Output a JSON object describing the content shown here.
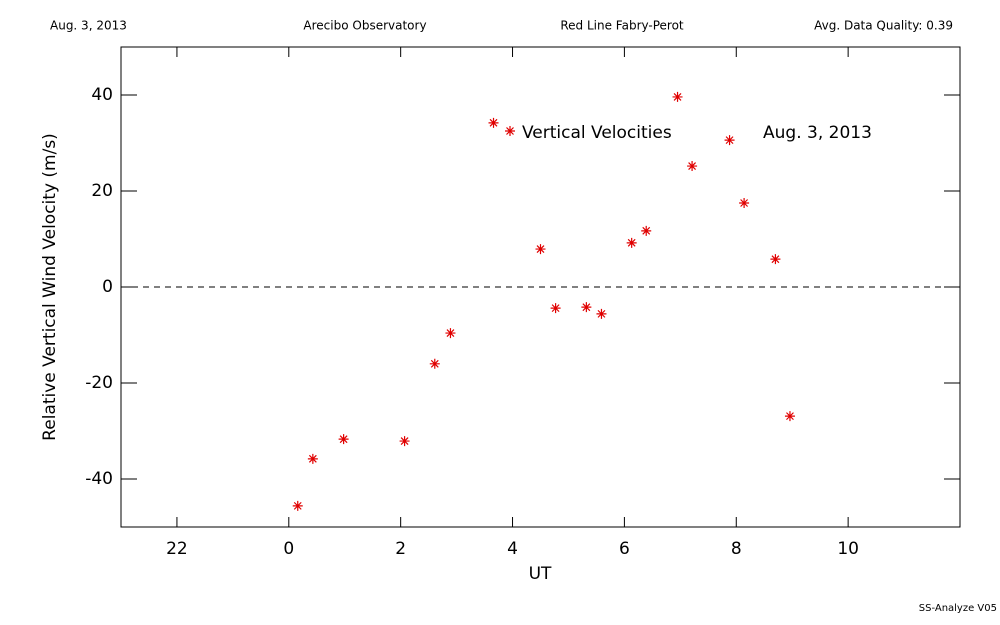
{
  "header": {
    "date": "Aug. 3, 2013",
    "site": "Arecibo Observatory",
    "instrument": "Red Line Fabry-Perot",
    "quality": "Avg. Data Quality: 0.39"
  },
  "footer": "SS-Analyze V05",
  "chart_data": {
    "type": "scatter",
    "xlabel": "UT",
    "ylabel": "Relative Vertical Wind Velocity (m/s)",
    "annotation": "Aug. 3, 2013",
    "xlim": [
      -3,
      12
    ],
    "xticks": [
      {
        "value": -2,
        "label": "22"
      },
      0,
      2,
      4,
      6,
      8,
      10
    ],
    "ylim": [
      -50,
      50
    ],
    "yticks": [
      -40,
      -20,
      0,
      20,
      40
    ],
    "zero_line": true,
    "series": [
      {
        "name": "Vertical Velocities",
        "color": "#e00000",
        "x": [
          0.16,
          0.43,
          0.98,
          2.07,
          2.61,
          2.89,
          3.66,
          4.5,
          4.77,
          5.32,
          5.59,
          6.13,
          6.39,
          6.95,
          7.21,
          7.88,
          8.14,
          8.7,
          8.96
        ],
        "values": [
          -45.6,
          -35.8,
          -31.7,
          -32.1,
          -16.0,
          -9.6,
          34.2,
          7.9,
          -4.4,
          -4.2,
          -5.6,
          9.2,
          11.7,
          39.6,
          25.2,
          30.6,
          17.5,
          5.8,
          -26.9
        ]
      }
    ]
  }
}
